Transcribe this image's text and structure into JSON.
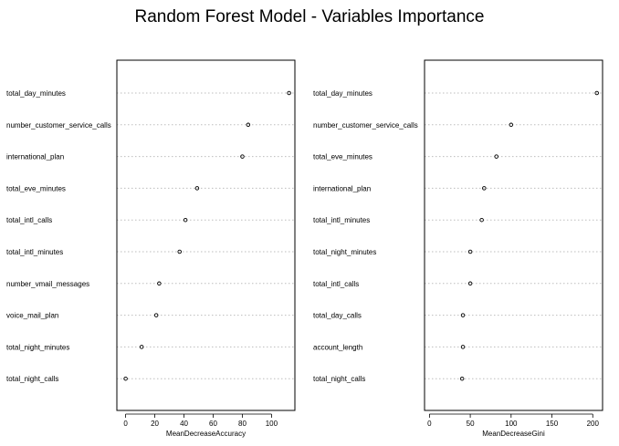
{
  "title": "Random Forest Model - Variables Importance",
  "chart_data": [
    {
      "type": "dotchart",
      "xlabel": "MeanDecreaseAccuracy",
      "xlim": [
        -6,
        116
      ],
      "xticks": [
        0,
        20,
        40,
        60,
        80,
        100
      ],
      "grid": "dotted horizontal",
      "labels": [
        "total_day_minutes",
        "number_customer_service_calls",
        "international_plan",
        "total_eve_minutes",
        "total_intl_calls",
        "total_intl_minutes",
        "number_vmail_messages",
        "voice_mail_plan",
        "total_night_minutes",
        "total_night_calls"
      ],
      "values": [
        112,
        84,
        80,
        49,
        41,
        37,
        23,
        21,
        11,
        0
      ]
    },
    {
      "type": "dotchart",
      "xlabel": "MeanDecreaseGini",
      "xlim": [
        -6,
        212
      ],
      "xticks": [
        0,
        50,
        100,
        150,
        200
      ],
      "grid": "dotted horizontal",
      "labels": [
        "total_day_minutes",
        "number_customer_service_calls",
        "total_eve_minutes",
        "international_plan",
        "total_intl_minutes",
        "total_night_minutes",
        "total_intl_calls",
        "total_day_calls",
        "account_length",
        "total_night_calls"
      ],
      "values": [
        205,
        100,
        82,
        67,
        64,
        50,
        50,
        41,
        41,
        40
      ]
    }
  ]
}
